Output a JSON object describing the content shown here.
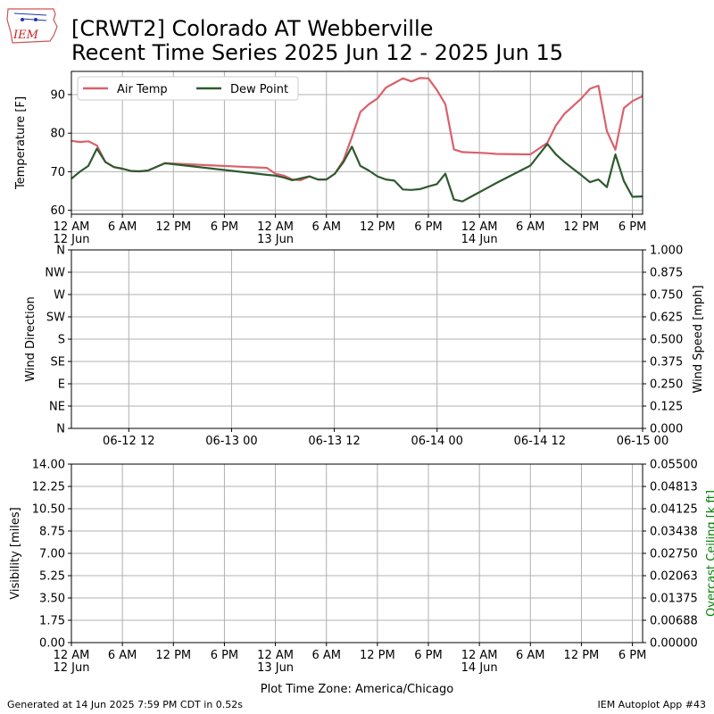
{
  "header": {
    "logo_text": "IEM",
    "title_line1": "[CRWT2] Colorado  AT Webberville",
    "title_line2": "Recent Time Series 2025 Jun 12 - 2025 Jun 15"
  },
  "footer": {
    "generated": "Generated at 14 Jun 2025 7:59 PM CDT in 0.52s",
    "app": "IEM Autoplot App #43"
  },
  "colors": {
    "air_temp": "#d9616b",
    "dew_point": "#2f5a2f",
    "grid": "#b0b0b0",
    "ceiling_label": "#008000"
  },
  "chart_data": [
    {
      "type": "line",
      "panel": "temperature",
      "ylabel": "Temperature [F]",
      "ylim": [
        59,
        96
      ],
      "yticks": [
        "60",
        "70",
        "80",
        "90"
      ],
      "xlim_hours": [
        0,
        67.2
      ],
      "xticks": [
        {
          "h": 0,
          "label": "12 AM",
          "sub": "12 Jun"
        },
        {
          "h": 6,
          "label": "6 AM",
          "sub": ""
        },
        {
          "h": 12,
          "label": "12 PM",
          "sub": ""
        },
        {
          "h": 18,
          "label": "6 PM",
          "sub": ""
        },
        {
          "h": 24,
          "label": "12 AM",
          "sub": "13 Jun"
        },
        {
          "h": 30,
          "label": "6 AM",
          "sub": ""
        },
        {
          "h": 36,
          "label": "12 PM",
          "sub": ""
        },
        {
          "h": 42,
          "label": "6 PM",
          "sub": ""
        },
        {
          "h": 48,
          "label": "12 AM",
          "sub": "14 Jun"
        },
        {
          "h": 54,
          "label": "6 AM",
          "sub": ""
        },
        {
          "h": 60,
          "label": "12 PM",
          "sub": ""
        },
        {
          "h": 66,
          "label": "6 PM",
          "sub": ""
        }
      ],
      "grid": true,
      "legend": "top-left",
      "series": [
        {
          "name": "Air Temp",
          "x": [
            0,
            1,
            2,
            3,
            4,
            5,
            6,
            7,
            8,
            9,
            11,
            23,
            24,
            25,
            26,
            27,
            28,
            29,
            30,
            31,
            32,
            33,
            34,
            35,
            36,
            37,
            38,
            39,
            40,
            41,
            42,
            43,
            44,
            45,
            46,
            47,
            48,
            49,
            50,
            54,
            56,
            57,
            58,
            59,
            60,
            61,
            62,
            63,
            64,
            65,
            66,
            67.2
          ],
          "y": [
            78,
            77.7,
            77.9,
            76.8,
            72.5,
            71.2,
            70.8,
            70.2,
            70.1,
            70.3,
            72.2,
            71,
            69.5,
            69,
            68,
            67.8,
            68.8,
            68,
            68,
            69.5,
            73,
            79,
            85.5,
            87.5,
            89,
            91.8,
            93,
            94.2,
            93.4,
            94.3,
            94.2,
            91.2,
            87.5,
            75.8,
            75.1,
            75,
            74.9,
            74.8,
            74.6,
            74.5,
            77.5,
            82,
            85,
            87,
            89,
            91.5,
            92.3,
            80.5,
            75.7,
            86.5,
            88.3,
            89.6
          ]
        },
        {
          "name": "Dew Point",
          "x": [
            0,
            1,
            2,
            3,
            4,
            5,
            6,
            7,
            8,
            9,
            11,
            23,
            24,
            25,
            26,
            27,
            28,
            29,
            30,
            31,
            32,
            33,
            34,
            35,
            36,
            37,
            38,
            39,
            40,
            41,
            42,
            43,
            44,
            45,
            46,
            47,
            48,
            49,
            50,
            54,
            56,
            57,
            58,
            59,
            60,
            61,
            62,
            63,
            64,
            65,
            66,
            67.2
          ],
          "y": [
            68.2,
            70,
            71.5,
            76,
            72.5,
            71.2,
            70.8,
            70.2,
            70.1,
            70.3,
            72.2,
            69.2,
            69,
            68.5,
            67.8,
            68.3,
            68.8,
            68,
            68,
            69.5,
            72.5,
            76.5,
            71.5,
            70.3,
            68.8,
            68,
            67.7,
            65.4,
            65.3,
            65.5,
            66.2,
            66.8,
            69.5,
            62.8,
            62.3,
            63.5,
            64.7,
            65.9,
            67.1,
            71.6,
            77.2,
            74.5,
            72.5,
            70.8,
            69.1,
            67.3,
            68,
            66,
            74.5,
            67.6,
            63.5,
            63.6
          ]
        }
      ]
    },
    {
      "type": "line",
      "panel": "wind",
      "ylabel": "Wind Direction",
      "y2label": "Wind Speed [mph]",
      "yticks": [
        "N",
        "NE",
        "E",
        "SE",
        "S",
        "SW",
        "W",
        "NW",
        "N"
      ],
      "y2ticks": [
        "0.000",
        "0.125",
        "0.250",
        "0.375",
        "0.500",
        "0.625",
        "0.750",
        "0.875",
        "1.000"
      ],
      "y2lim": [
        0,
        1
      ],
      "xticks": [
        {
          "h": 12,
          "label": "06-12 12"
        },
        {
          "h": 24,
          "label": "06-13 00"
        },
        {
          "h": 36,
          "label": "06-13 12"
        },
        {
          "h": 48,
          "label": "06-14 00"
        },
        {
          "h": 60,
          "label": "06-14 12"
        },
        {
          "h": 72,
          "label": "06-15 00"
        }
      ],
      "xlim_hours": [
        5.3,
        72
      ],
      "grid": true,
      "series": []
    },
    {
      "type": "line",
      "panel": "visibility",
      "ylabel": "Visibility [miles]",
      "y2label": "Overcast Ceiling [k ft]",
      "ylim": [
        0,
        14
      ],
      "yticks": [
        "0.00",
        "1.75",
        "3.50",
        "5.25",
        "7.00",
        "8.75",
        "10.50",
        "12.25",
        "14.00"
      ],
      "y2lim": [
        0,
        0.055
      ],
      "y2ticks": [
        "0.00000",
        "0.00688",
        "0.01375",
        "0.02063",
        "0.02750",
        "0.03438",
        "0.04125",
        "0.04813",
        "0.05500"
      ],
      "xlim_hours": [
        0,
        67.2
      ],
      "xticks": [
        {
          "h": 0,
          "label": "12 AM",
          "sub": "12 Jun"
        },
        {
          "h": 6,
          "label": "6 AM",
          "sub": ""
        },
        {
          "h": 12,
          "label": "12 PM",
          "sub": ""
        },
        {
          "h": 18,
          "label": "6 PM",
          "sub": ""
        },
        {
          "h": 24,
          "label": "12 AM",
          "sub": "13 Jun"
        },
        {
          "h": 30,
          "label": "6 AM",
          "sub": ""
        },
        {
          "h": 36,
          "label": "12 PM",
          "sub": ""
        },
        {
          "h": 42,
          "label": "6 PM",
          "sub": ""
        },
        {
          "h": 48,
          "label": "12 AM",
          "sub": "14 Jun"
        },
        {
          "h": 54,
          "label": "6 AM",
          "sub": ""
        },
        {
          "h": 60,
          "label": "12 PM",
          "sub": ""
        },
        {
          "h": 66,
          "label": "6 PM",
          "sub": ""
        }
      ],
      "xlabel": "Plot Time Zone: America/Chicago",
      "grid": true,
      "series": []
    }
  ]
}
